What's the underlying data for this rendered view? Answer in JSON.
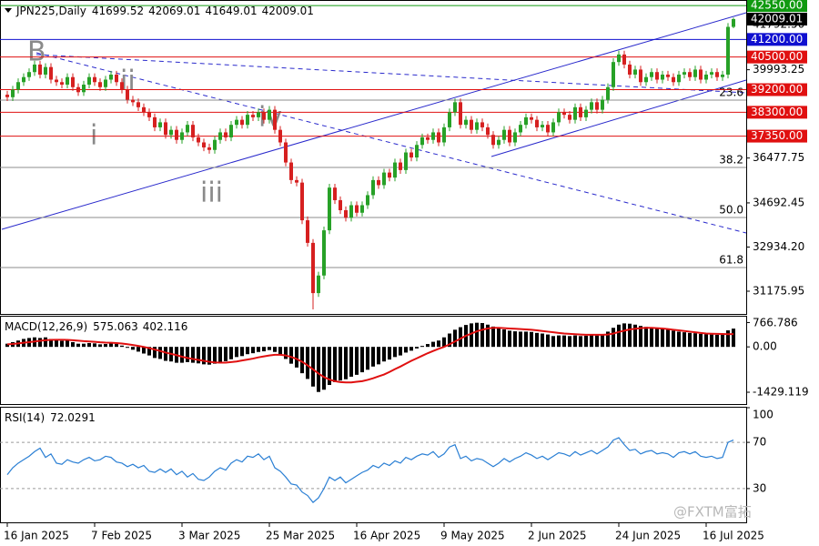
{
  "chart_data": [
    {
      "type": "candlestick",
      "title": "JPN225,Daily",
      "categories": [
        "16 Jan 2025",
        null,
        null,
        null,
        null,
        null,
        null,
        null,
        null,
        null,
        null,
        null,
        null,
        null,
        null,
        null,
        "7 Feb 2025",
        null,
        null,
        null,
        null,
        null,
        null,
        null,
        null,
        null,
        null,
        null,
        null,
        null,
        null,
        null,
        "3 Mar 2025",
        null,
        null,
        null,
        null,
        null,
        null,
        null,
        null,
        null,
        null,
        null,
        null,
        null,
        null,
        null,
        "25 Mar 2025",
        null,
        null,
        null,
        null,
        null,
        null,
        null,
        null,
        null,
        null,
        null,
        null,
        null,
        null,
        null,
        "16 Apr 2025",
        null,
        null,
        null,
        null,
        null,
        null,
        null,
        null,
        null,
        null,
        null,
        null,
        null,
        null,
        null,
        "9 May 2025",
        null,
        null,
        null,
        null,
        null,
        null,
        null,
        null,
        null,
        null,
        null,
        null,
        null,
        null,
        null,
        "2 Jun 2025",
        null,
        null,
        null,
        null,
        null,
        null,
        null,
        null,
        null,
        null,
        null,
        null,
        null,
        null,
        null,
        "24 Jun 2025",
        null,
        null,
        null,
        null,
        null,
        null,
        null,
        null,
        null,
        null,
        null,
        null,
        null,
        null,
        null,
        "16 Jul 2025",
        null,
        null,
        null,
        null,
        null
      ],
      "open": [
        39000,
        38900,
        39200,
        39500,
        39700,
        39900,
        40200,
        39800,
        40100,
        39600,
        39500,
        39400,
        39700,
        39300,
        39100,
        39400,
        39700,
        39500,
        39300,
        39600,
        39800,
        39500,
        39200,
        38800,
        38700,
        38500,
        38300,
        38100,
        37700,
        37900,
        37400,
        37600,
        37200,
        37500,
        37800,
        37300,
        37100,
        36900,
        36800,
        37200,
        37500,
        37300,
        37800,
        38000,
        37800,
        38200,
        38100,
        38300,
        38000,
        38400,
        37600,
        37100,
        36300,
        35600,
        35500,
        34000,
        33100,
        31100,
        31800,
        33600,
        35300,
        34800,
        34400,
        34100,
        34600,
        34300,
        34600,
        35000,
        35600,
        35400,
        35900,
        35700,
        36300,
        36000,
        36700,
        36500,
        37000,
        37300,
        37200,
        37500,
        37100,
        37700,
        38300,
        38700,
        37800,
        38000,
        37600,
        37900,
        37700,
        37400,
        37000,
        37200,
        37600,
        37100,
        37500,
        37800,
        38100,
        38000,
        37700,
        37800,
        37500,
        37900,
        38300,
        38200,
        38000,
        38500,
        38100,
        38400,
        38700,
        38400,
        38800,
        39300,
        40300,
        40600,
        40200,
        39800,
        40000,
        39500,
        39700,
        39900,
        39600,
        39800,
        39700,
        39500,
        39800,
        39900,
        39700,
        40000,
        39600,
        39800,
        39900,
        39700,
        39800,
        41699.52
      ],
      "high": [
        39150,
        39350,
        39650,
        39850,
        40050,
        40350,
        40350,
        40250,
        40250,
        39750,
        39650,
        39850,
        39850,
        39450,
        39550,
        39850,
        39850,
        39650,
        39750,
        39950,
        39950,
        39650,
        39350,
        38950,
        38850,
        38650,
        38450,
        38250,
        38050,
        38050,
        37750,
        37750,
        37650,
        37950,
        37950,
        37450,
        37250,
        37050,
        37350,
        37650,
        37650,
        37950,
        38150,
        38150,
        38350,
        38350,
        38450,
        38450,
        38550,
        38550,
        37750,
        37250,
        36450,
        35750,
        35650,
        34150,
        33250,
        31950,
        33750,
        35450,
        35450,
        34950,
        34550,
        34750,
        34750,
        34750,
        35150,
        35750,
        35750,
        36050,
        36050,
        36450,
        36450,
        36850,
        36850,
        37150,
        37450,
        37450,
        37650,
        37650,
        37850,
        38450,
        38850,
        38850,
        38150,
        38150,
        38050,
        38050,
        37850,
        37550,
        37350,
        37750,
        37750,
        37650,
        37950,
        38250,
        38250,
        38150,
        37950,
        37950,
        38050,
        38450,
        38450,
        38350,
        38650,
        38650,
        38550,
        38850,
        38850,
        38950,
        39450,
        40450,
        40750,
        40750,
        40350,
        40150,
        40150,
        39850,
        40050,
        40050,
        39950,
        39950,
        39850,
        39950,
        40050,
        40050,
        40150,
        40150,
        39950,
        40050,
        40050,
        39950,
        41850,
        42069.01
      ],
      "low": [
        38750,
        38750,
        39050,
        39350,
        39550,
        39750,
        39650,
        39650,
        39450,
        39350,
        39250,
        39250,
        39150,
        38950,
        38950,
        39250,
        39350,
        39150,
        39150,
        39450,
        39350,
        39050,
        38650,
        38550,
        38350,
        38150,
        37950,
        37550,
        37550,
        37250,
        37250,
        37050,
        37050,
        37350,
        37150,
        36950,
        36750,
        36650,
        36650,
        37050,
        37150,
        37150,
        37650,
        37650,
        37650,
        37950,
        37950,
        37850,
        37850,
        37450,
        36950,
        36150,
        35450,
        35350,
        33850,
        32950,
        30450,
        30950,
        31650,
        33450,
        34650,
        34250,
        33950,
        33950,
        34150,
        34150,
        34450,
        34850,
        35250,
        35250,
        35550,
        35550,
        35850,
        35850,
        36350,
        36350,
        36850,
        37050,
        37050,
        36950,
        36950,
        37550,
        38150,
        37650,
        37650,
        37450,
        37450,
        37550,
        37250,
        36850,
        36850,
        37050,
        36950,
        36950,
        37350,
        37650,
        37850,
        37550,
        37550,
        37350,
        37350,
        37750,
        38050,
        37850,
        37850,
        37950,
        37950,
        38250,
        38250,
        38250,
        38650,
        39150,
        40150,
        40050,
        39650,
        39650,
        39350,
        39350,
        39550,
        39450,
        39450,
        39550,
        39350,
        39350,
        39650,
        39550,
        39550,
        39450,
        39450,
        39650,
        39550,
        39550,
        39650,
        41649.01
      ],
      "close": [
        38900,
        39200,
        39500,
        39700,
        39900,
        40200,
        39800,
        40100,
        39600,
        39500,
        39400,
        39700,
        39300,
        39100,
        39400,
        39700,
        39500,
        39300,
        39600,
        39800,
        39500,
        39200,
        38800,
        38700,
        38500,
        38300,
        38100,
        37700,
        37900,
        37400,
        37600,
        37200,
        37500,
        37800,
        37300,
        37100,
        36900,
        36800,
        37200,
        37500,
        37300,
        37800,
        38000,
        37800,
        38200,
        38100,
        38300,
        38000,
        38400,
        37600,
        37100,
        36300,
        35600,
        35500,
        34000,
        33100,
        31100,
        31800,
        33600,
        35300,
        34800,
        34400,
        34100,
        34600,
        34300,
        34600,
        35000,
        35600,
        35400,
        35900,
        35700,
        36300,
        36000,
        36700,
        36500,
        37000,
        37300,
        37200,
        37500,
        37100,
        37700,
        38300,
        38700,
        37800,
        38000,
        37600,
        37900,
        37700,
        37400,
        37000,
        37200,
        37600,
        37100,
        37500,
        37800,
        38100,
        38000,
        37700,
        37800,
        37500,
        37900,
        38300,
        38200,
        38000,
        38500,
        38100,
        38400,
        38700,
        38400,
        38800,
        39300,
        40300,
        40600,
        40200,
        39800,
        40000,
        39500,
        39700,
        39900,
        39600,
        39800,
        39700,
        39500,
        39800,
        39900,
        39700,
        40000,
        39600,
        39800,
        39900,
        39700,
        39800,
        41700,
        42009.01
      ],
      "up_color": "#27a127",
      "down_color": "#d62020",
      "ylim": [
        30270,
        42770
      ],
      "yticks": [
        {
          "value": 41792.5,
          "label": "41792.50"
        },
        39993.25,
        36477.75,
        34692.45,
        {
          "value": 32934.2,
          "label": "32934.20"
        },
        31175.95
      ],
      "levels": [
        {
          "value": 42550,
          "label": "42550.00",
          "color": "#109a10"
        },
        {
          "value": 41200,
          "label": "41200.00",
          "color": "#1010d0"
        },
        {
          "value": 40500,
          "label": "40500.00",
          "color": "#e01010"
        },
        {
          "value": 39200,
          "label": "39200.00",
          "color": "#e01010"
        },
        {
          "value": 38300,
          "label": "38300.00",
          "color": "#e01010"
        },
        {
          "value": 37350,
          "label": "37350.00",
          "color": "#e01010"
        }
      ],
      "fib_levels": [
        {
          "label": "23.6",
          "price": 38785
        },
        {
          "label": "38.2",
          "price": 36104
        },
        {
          "label": "50.0",
          "price": 34111
        },
        {
          "label": "61.8",
          "price": 32118
        }
      ],
      "annotations": [
        "B",
        "ii",
        "i",
        "iii",
        "iv"
      ],
      "watermark": "@FXTM富拓"
    },
    {
      "type": "macd",
      "title": "MACD(12,26,9)",
      "series": [
        {
          "style": "histogram",
          "color": "#000000",
          "values": [
            100,
            150,
            200,
            250,
            280,
            300,
            280,
            300,
            250,
            220,
            190,
            200,
            150,
            100,
            100,
            120,
            110,
            80,
            90,
            110,
            90,
            40,
            -30,
            -90,
            -150,
            -210,
            -270,
            -350,
            -380,
            -440,
            -460,
            -500,
            -500,
            -480,
            -500,
            -520,
            -550,
            -560,
            -530,
            -480,
            -450,
            -390,
            -320,
            -290,
            -230,
            -200,
            -160,
            -140,
            -100,
            -160,
            -250,
            -380,
            -530,
            -650,
            -830,
            -1010,
            -1250,
            -1420,
            -1350,
            -1200,
            -1110,
            -1060,
            -1020,
            -940,
            -880,
            -800,
            -720,
            -620,
            -550,
            -460,
            -400,
            -320,
            -270,
            -180,
            -120,
            -50,
            30,
            90,
            160,
            200,
            300,
            420,
            540,
            620,
            690,
            740,
            760,
            750,
            700,
            640,
            580,
            550,
            510,
            490,
            480,
            480,
            470,
            440,
            420,
            390,
            340,
            360,
            360,
            340,
            360,
            340,
            350,
            370,
            360,
            380,
            480,
            600,
            700,
            740,
            730,
            700,
            660,
            630,
            610,
            580,
            560,
            540,
            510,
            480,
            460,
            440,
            430,
            410,
            400,
            390,
            380,
            420,
            520,
            575.063
          ]
        },
        {
          "style": "line",
          "color": "#e01010",
          "values": [
            80,
            90,
            110,
            130,
            150,
            170,
            190,
            210,
            220,
            225,
            225,
            220,
            210,
            195,
            180,
            170,
            160,
            145,
            135,
            130,
            120,
            105,
            85,
            60,
            30,
            0,
            -40,
            -85,
            -130,
            -180,
            -220,
            -260,
            -310,
            -350,
            -380,
            -410,
            -440,
            -470,
            -490,
            -495,
            -495,
            -480,
            -460,
            -430,
            -400,
            -370,
            -330,
            -300,
            -270,
            -250,
            -250,
            -270,
            -320,
            -380,
            -470,
            -580,
            -710,
            -840,
            -950,
            -1030,
            -1080,
            -1110,
            -1120,
            -1120,
            -1100,
            -1080,
            -1040,
            -990,
            -930,
            -870,
            -790,
            -700,
            -620,
            -530,
            -440,
            -360,
            -280,
            -200,
            -130,
            -60,
            0,
            80,
            170,
            260,
            350,
            420,
            490,
            540,
            580,
            600,
            600,
            590,
            580,
            570,
            560,
            550,
            540,
            520,
            500,
            480,
            460,
            440,
            420,
            410,
            400,
            390,
            380,
            380,
            380,
            380,
            390,
            420,
            470,
            510,
            550,
            570,
            590,
            600,
            600,
            590,
            580,
            560,
            540,
            520,
            500,
            480,
            460,
            440,
            420,
            415,
            410,
            405,
            400,
            402.116
          ]
        }
      ],
      "ylim": [
        -1830,
        980
      ],
      "yticks": [
        766.786,
        {
          "value": 0,
          "label": "0.00"
        },
        -1429.119
      ]
    },
    {
      "type": "line",
      "title": "RSI(14)",
      "color": "#2a7fd4",
      "values": [
        42,
        48,
        52,
        55,
        58,
        62,
        65,
        57,
        60,
        52,
        51,
        55,
        53,
        52,
        55,
        57,
        54,
        55,
        58,
        57,
        53,
        52,
        49,
        51,
        48,
        50,
        45,
        44,
        47,
        44,
        47,
        42,
        45,
        40,
        43,
        38,
        37,
        40,
        45,
        48,
        46,
        52,
        55,
        53,
        58,
        57,
        60,
        55,
        58,
        48,
        45,
        40,
        34,
        33,
        27,
        24,
        18,
        22,
        30,
        40,
        37,
        40,
        35,
        38,
        41,
        44,
        46,
        50,
        48,
        52,
        50,
        54,
        52,
        57,
        55,
        58,
        60,
        59,
        62,
        57,
        60,
        66,
        68,
        56,
        58,
        54,
        56,
        55,
        52,
        49,
        52,
        56,
        53,
        56,
        58,
        61,
        59,
        56,
        58,
        55,
        58,
        61,
        60,
        58,
        62,
        59,
        61,
        63,
        60,
        63,
        66,
        72,
        74,
        68,
        63,
        64,
        60,
        62,
        63,
        60,
        61,
        60,
        57,
        61,
        62,
        60,
        62,
        58,
        57,
        58,
        56,
        57,
        70,
        72.0291
      ],
      "ylim": [
        0,
        100
      ],
      "yticks": [
        100,
        70,
        30
      ]
    }
  ]
}
